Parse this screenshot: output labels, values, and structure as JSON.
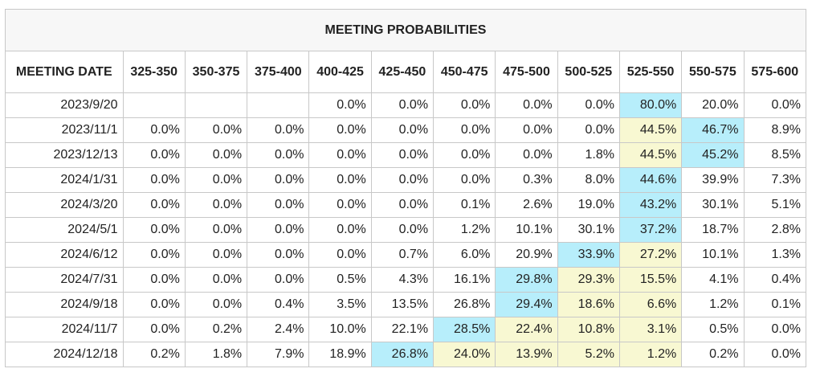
{
  "chart_data": {
    "type": "table",
    "title": "MEETING PROBABILITIES",
    "date_header": "MEETING DATE",
    "columns": [
      "325-350",
      "350-375",
      "375-400",
      "400-425",
      "425-450",
      "450-475",
      "475-500",
      "500-525",
      "525-550",
      "550-575",
      "575-600"
    ],
    "highlight_colors": {
      "max": "#b7eefb",
      "secondary": "#f8f8d2"
    },
    "rows": [
      {
        "date": "2023/9/20",
        "values": [
          "",
          "",
          "",
          "0.0%",
          "0.0%",
          "0.0%",
          "0.0%",
          "0.0%",
          "80.0%",
          "20.0%",
          "0.0%"
        ],
        "highlight": {
          "8": "max"
        }
      },
      {
        "date": "2023/11/1",
        "values": [
          "0.0%",
          "0.0%",
          "0.0%",
          "0.0%",
          "0.0%",
          "0.0%",
          "0.0%",
          "0.0%",
          "44.5%",
          "46.7%",
          "8.9%"
        ],
        "highlight": {
          "8": "secondary",
          "9": "max"
        }
      },
      {
        "date": "2023/12/13",
        "values": [
          "0.0%",
          "0.0%",
          "0.0%",
          "0.0%",
          "0.0%",
          "0.0%",
          "0.0%",
          "1.8%",
          "44.5%",
          "45.2%",
          "8.5%"
        ],
        "highlight": {
          "8": "secondary",
          "9": "max"
        }
      },
      {
        "date": "2024/1/31",
        "values": [
          "0.0%",
          "0.0%",
          "0.0%",
          "0.0%",
          "0.0%",
          "0.0%",
          "0.3%",
          "8.0%",
          "44.6%",
          "39.9%",
          "7.3%"
        ],
        "highlight": {
          "8": "max"
        }
      },
      {
        "date": "2024/3/20",
        "values": [
          "0.0%",
          "0.0%",
          "0.0%",
          "0.0%",
          "0.0%",
          "0.1%",
          "2.6%",
          "19.0%",
          "43.2%",
          "30.1%",
          "5.1%"
        ],
        "highlight": {
          "8": "max"
        }
      },
      {
        "date": "2024/5/1",
        "values": [
          "0.0%",
          "0.0%",
          "0.0%",
          "0.0%",
          "0.0%",
          "1.2%",
          "10.1%",
          "30.1%",
          "37.2%",
          "18.7%",
          "2.8%"
        ],
        "highlight": {
          "8": "max"
        }
      },
      {
        "date": "2024/6/12",
        "values": [
          "0.0%",
          "0.0%",
          "0.0%",
          "0.0%",
          "0.7%",
          "6.0%",
          "20.9%",
          "33.9%",
          "27.2%",
          "10.1%",
          "1.3%"
        ],
        "highlight": {
          "7": "max",
          "8": "secondary"
        }
      },
      {
        "date": "2024/7/31",
        "values": [
          "0.0%",
          "0.0%",
          "0.0%",
          "0.5%",
          "4.3%",
          "16.1%",
          "29.8%",
          "29.3%",
          "15.5%",
          "4.1%",
          "0.4%"
        ],
        "highlight": {
          "6": "max",
          "7": "secondary",
          "8": "secondary"
        }
      },
      {
        "date": "2024/9/18",
        "values": [
          "0.0%",
          "0.0%",
          "0.4%",
          "3.5%",
          "13.5%",
          "26.8%",
          "29.4%",
          "18.6%",
          "6.6%",
          "1.2%",
          "0.1%"
        ],
        "highlight": {
          "6": "max",
          "7": "secondary",
          "8": "secondary"
        }
      },
      {
        "date": "2024/11/7",
        "values": [
          "0.0%",
          "0.2%",
          "2.4%",
          "10.0%",
          "22.1%",
          "28.5%",
          "22.4%",
          "10.8%",
          "3.1%",
          "0.5%",
          "0.0%"
        ],
        "highlight": {
          "5": "max",
          "6": "secondary",
          "7": "secondary",
          "8": "secondary"
        }
      },
      {
        "date": "2024/12/18",
        "values": [
          "0.2%",
          "1.8%",
          "7.9%",
          "18.9%",
          "26.8%",
          "24.0%",
          "13.9%",
          "5.2%",
          "1.2%",
          "0.2%",
          "0.0%"
        ],
        "highlight": {
          "4": "max",
          "5": "secondary",
          "6": "secondary",
          "7": "secondary",
          "8": "secondary"
        }
      }
    ]
  }
}
